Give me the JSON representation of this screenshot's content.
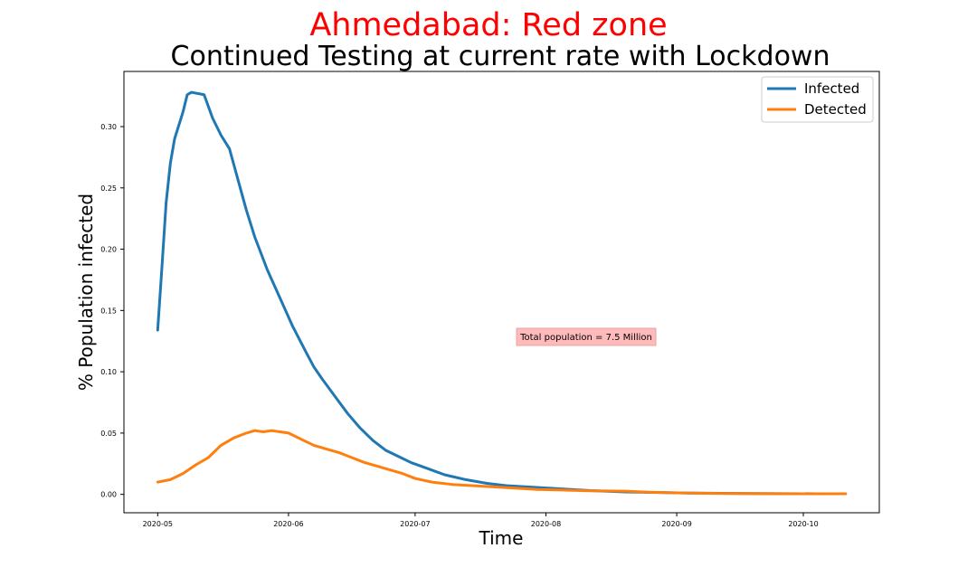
{
  "chart_data": {
    "type": "line",
    "title": "Ahmedabad: Red zone",
    "subtitle": "Continued Testing at current rate with Lockdown",
    "title_color": "#ff0000",
    "xlabel": "Time",
    "ylabel": "% Population infected",
    "x_type": "date",
    "x_range": [
      "2020-04-23",
      "2020-10-19"
    ],
    "xlim": [
      "2020-04-23",
      "2020-10-19"
    ],
    "ylim": [
      -0.015,
      0.345
    ],
    "x_ticks": [
      "2020-05",
      "2020-06",
      "2020-07",
      "2020-08",
      "2020-09",
      "2020-10"
    ],
    "x_tick_dates": [
      "2020-05-01",
      "2020-06-01",
      "2020-07-01",
      "2020-08-01",
      "2020-09-01",
      "2020-10-01"
    ],
    "y_ticks": [
      0.0,
      0.05,
      0.1,
      0.15,
      0.2,
      0.25,
      0.3
    ],
    "y_tick_labels": [
      "0.00",
      "0.05",
      "0.10",
      "0.15",
      "0.20",
      "0.25",
      "0.30"
    ],
    "grid": false,
    "legend_position": "top-right",
    "annotation": "Total population = 7.5 Million",
    "annotation_position": {
      "date": "2020-08-10",
      "value": 0.127
    },
    "series": [
      {
        "name": "Infected",
        "color": "#1f77b4",
        "x": [
          "2020-05-01",
          "2020-05-02",
          "2020-05-03",
          "2020-05-04",
          "2020-05-05",
          "2020-05-07",
          "2020-05-08",
          "2020-05-09",
          "2020-05-12",
          "2020-05-14",
          "2020-05-16",
          "2020-05-18",
          "2020-05-20",
          "2020-05-22",
          "2020-05-24",
          "2020-05-27",
          "2020-05-30",
          "2020-06-02",
          "2020-06-05",
          "2020-06-07",
          "2020-06-09",
          "2020-06-12",
          "2020-06-15",
          "2020-06-18",
          "2020-06-21",
          "2020-06-24",
          "2020-06-27",
          "2020-06-30",
          "2020-07-04",
          "2020-07-08",
          "2020-07-13",
          "2020-07-18",
          "2020-07-23",
          "2020-07-28",
          "2020-08-02",
          "2020-08-07",
          "2020-08-12",
          "2020-08-20",
          "2020-08-28",
          "2020-09-05",
          "2020-09-15",
          "2020-09-25",
          "2020-10-05",
          "2020-10-11"
        ],
        "y": [
          0.134,
          0.185,
          0.238,
          0.27,
          0.29,
          0.312,
          0.326,
          0.328,
          0.326,
          0.307,
          0.293,
          0.282,
          0.257,
          0.232,
          0.21,
          0.183,
          0.16,
          0.137,
          0.117,
          0.104,
          0.094,
          0.08,
          0.066,
          0.054,
          0.044,
          0.036,
          0.031,
          0.026,
          0.021,
          0.016,
          0.012,
          0.009,
          0.007,
          0.006,
          0.005,
          0.004,
          0.003,
          0.002,
          0.0015,
          0.001,
          0.0008,
          0.0006,
          0.0005,
          0.0005
        ]
      },
      {
        "name": "Detected",
        "color": "#ff7f0e",
        "x": [
          "2020-05-01",
          "2020-05-04",
          "2020-05-07",
          "2020-05-10",
          "2020-05-13",
          "2020-05-16",
          "2020-05-19",
          "2020-05-22",
          "2020-05-24",
          "2020-05-26",
          "2020-05-28",
          "2020-05-30",
          "2020-06-01",
          "2020-06-04",
          "2020-06-07",
          "2020-06-10",
          "2020-06-13",
          "2020-06-16",
          "2020-06-19",
          "2020-06-22",
          "2020-06-25",
          "2020-06-28",
          "2020-07-01",
          "2020-07-05",
          "2020-07-10",
          "2020-07-15",
          "2020-07-20",
          "2020-07-25",
          "2020-07-30",
          "2020-08-05",
          "2020-08-10",
          "2020-08-15",
          "2020-08-20",
          "2020-08-25",
          "2020-09-01",
          "2020-09-10",
          "2020-09-20",
          "2020-10-01",
          "2020-10-11"
        ],
        "y": [
          0.01,
          0.012,
          0.017,
          0.024,
          0.03,
          0.04,
          0.046,
          0.05,
          0.052,
          0.051,
          0.052,
          0.051,
          0.05,
          0.045,
          0.04,
          0.037,
          0.034,
          0.03,
          0.026,
          0.023,
          0.02,
          0.017,
          0.013,
          0.01,
          0.008,
          0.007,
          0.006,
          0.005,
          0.004,
          0.0035,
          0.003,
          0.0028,
          0.0026,
          0.0018,
          0.0012,
          0.0008,
          0.0006,
          0.0005,
          0.0005
        ]
      }
    ]
  }
}
